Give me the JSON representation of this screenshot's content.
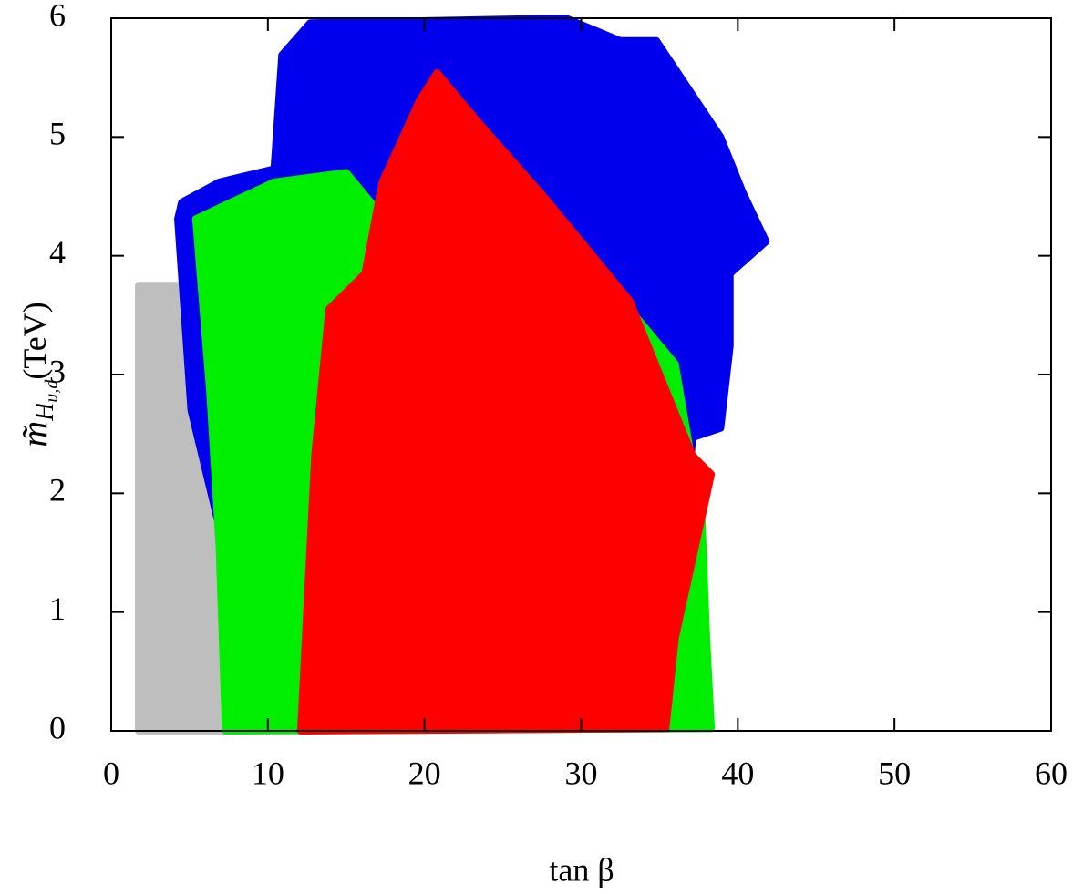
{
  "chart_data": {
    "type": "scatter",
    "x_label": "tan β",
    "y_label": {
      "symbol": "m̃",
      "subscript": "H",
      "subsubscript": "u,d",
      "unit": "(TeV)"
    },
    "xlim": [
      0,
      60
    ],
    "ylim": [
      0,
      6
    ],
    "xticks": [
      0,
      10,
      20,
      30,
      40,
      50,
      60
    ],
    "yticks": [
      0,
      1,
      2,
      3,
      4,
      5,
      6
    ],
    "series": [
      {
        "color": "#bebebe",
        "x": [
          1.75,
          1.75,
          4.5,
          4.8,
          5.6,
          6.4,
          7.2,
          7.45
        ],
        "y": [
          0,
          3.75,
          3.75,
          3.9,
          3.5,
          2.8,
          1.55,
          0
        ]
      },
      {
        "color": "#0000ee",
        "x": [
          7.45,
          7.2,
          5.1,
          4.25,
          4.5,
          6.9,
          10.4,
          10.9,
          12.7,
          29,
          32.5,
          34.8,
          38.9,
          40.3,
          41.8,
          39.5,
          39.5,
          38.9,
          37.1,
          36.5,
          33.6,
          20.8
        ],
        "y": [
          0.02,
          1.55,
          2.7,
          4.31,
          4.45,
          4.62,
          4.73,
          5.69,
          5.96,
          6.0,
          5.81,
          5.81,
          5.0,
          4.54,
          4.12,
          3.85,
          3.24,
          2.55,
          2.47,
          1.2,
          0.17,
          0.09
        ]
      },
      {
        "color": "#00ee00",
        "x": [
          7.3,
          6.9,
          6.3,
          5.4,
          10.4,
          15.0,
          17.9,
          24.9,
          30.7,
          36.0,
          37.7,
          38.0,
          38.3
        ],
        "y": [
          0,
          1.55,
          2.85,
          4.31,
          4.62,
          4.7,
          4.24,
          4.16,
          3.93,
          3.09,
          1.78,
          0.78,
          0.02
        ]
      },
      {
        "color": "#ff0000",
        "x": [
          12.1,
          13.0,
          13.9,
          16.2,
          17.3,
          19.7,
          20.8,
          23.2,
          27.8,
          33.1,
          37.1,
          38.3,
          36.0,
          35.4
        ],
        "y": [
          0,
          2.32,
          3.55,
          3.85,
          4.62,
          5.31,
          5.54,
          5.16,
          4.47,
          3.62,
          2.32,
          2.16,
          0.78,
          0.02
        ]
      }
    ]
  }
}
